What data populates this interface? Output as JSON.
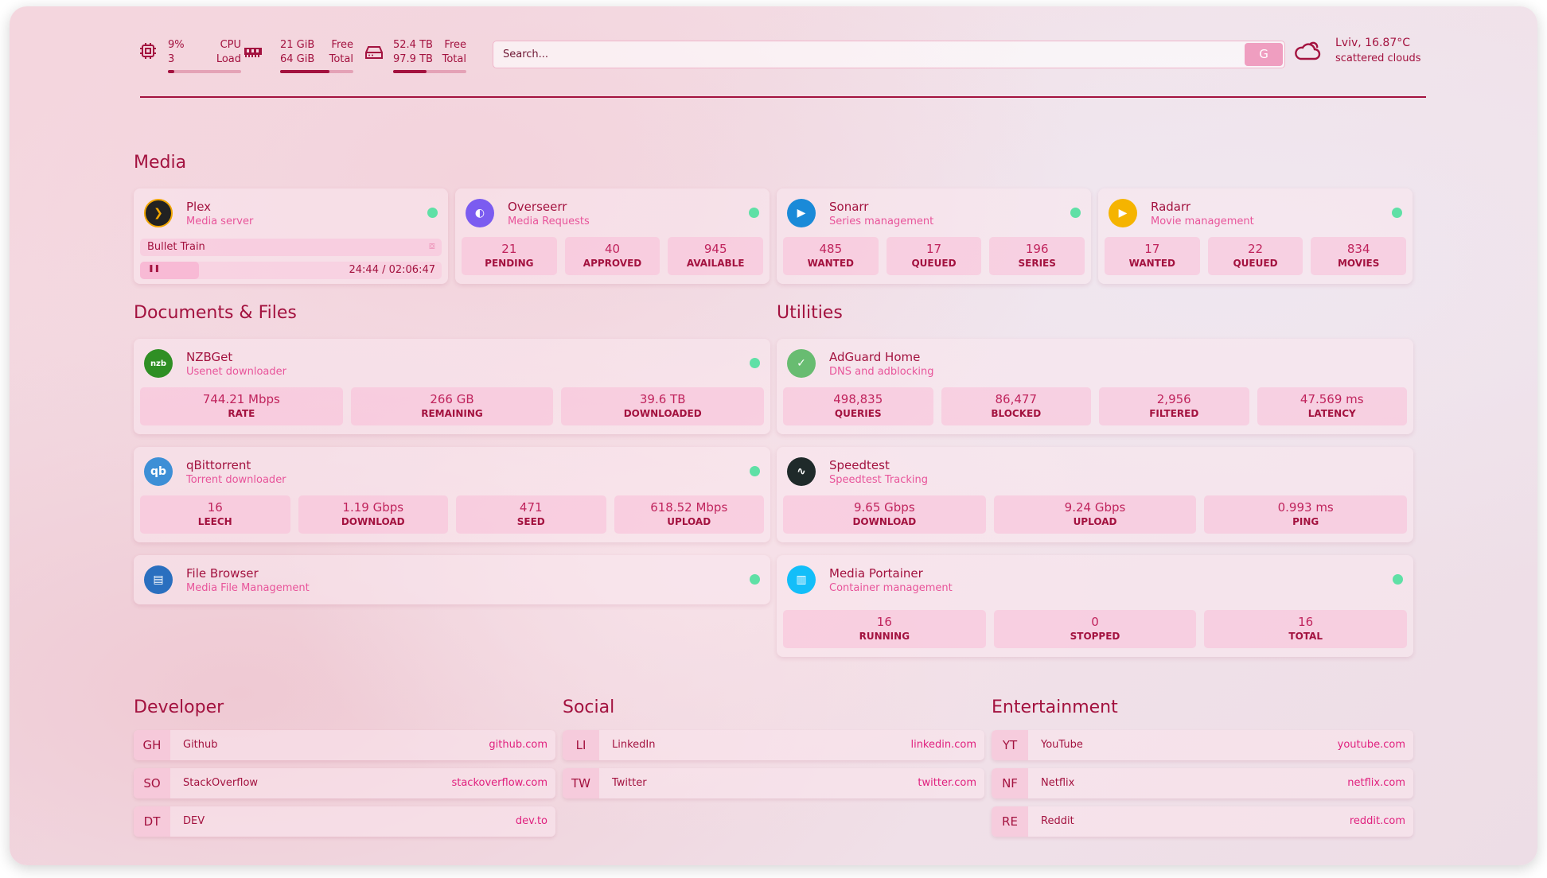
{
  "header": {
    "cpu": {
      "value": "9%",
      "sub": "3",
      "label1": "CPU",
      "label2": "Load",
      "percent": 9
    },
    "memory": {
      "value": "21 GiB",
      "sub": "64 GiB",
      "label1": "Free",
      "label2": "Total",
      "percent": 67
    },
    "disk": {
      "value": "52.4 TB",
      "sub": "97.9 TB",
      "label1": "Free",
      "label2": "Total",
      "percent": 46
    },
    "search": {
      "placeholder": "Search...",
      "button": "G"
    },
    "weather": {
      "location_temp": "Lviv, 16.87°C",
      "condition": "scattered clouds"
    }
  },
  "sections": {
    "media": "Media",
    "docs": "Documents & Files",
    "utilities": "Utilities",
    "developer": "Developer",
    "social": "Social",
    "entertainment": "Entertainment"
  },
  "cards": [
    {
      "name": "Plex",
      "desc": "Media server",
      "icon": "plex-icon",
      "color": "#222222",
      "status": "online",
      "now_playing": {
        "title": "Bullet Train",
        "time": "24:44 / 02:06:47",
        "progress": 19.5
      }
    },
    {
      "name": "Overseerr",
      "desc": "Media Requests",
      "icon": "overseerr-icon",
      "color": "#7b5cf0",
      "status": "online",
      "stats": [
        {
          "v": "21",
          "l": "PENDING"
        },
        {
          "v": "40",
          "l": "APPROVED"
        },
        {
          "v": "945",
          "l": "AVAILABLE"
        }
      ]
    },
    {
      "name": "Sonarr",
      "desc": "Series management",
      "icon": "sonarr-icon",
      "color": "#1a8ad8",
      "status": "online",
      "stats": [
        {
          "v": "485",
          "l": "WANTED"
        },
        {
          "v": "17",
          "l": "QUEUED"
        },
        {
          "v": "196",
          "l": "SERIES"
        }
      ]
    },
    {
      "name": "Radarr",
      "desc": "Movie management",
      "icon": "radarr-icon",
      "color": "#f5b400",
      "status": "online",
      "stats": [
        {
          "v": "17",
          "l": "WANTED"
        },
        {
          "v": "22",
          "l": "QUEUED"
        },
        {
          "v": "834",
          "l": "MOVIES"
        }
      ]
    },
    {
      "name": "NZBGet",
      "desc": "Usenet downloader",
      "icon": "nzbget-icon",
      "color": "#2f8f24",
      "status": "online",
      "stats": [
        {
          "v": "744.21 Mbps",
          "l": "RATE"
        },
        {
          "v": "266 GB",
          "l": "REMAINING"
        },
        {
          "v": "39.6 TB",
          "l": "DOWNLOADED"
        }
      ]
    },
    {
      "name": "qBittorrent",
      "desc": "Torrent downloader",
      "icon": "qbittorrent-icon",
      "color": "#3d8fd6",
      "status": "online",
      "stats": [
        {
          "v": "16",
          "l": "LEECH"
        },
        {
          "v": "1.19 Gbps",
          "l": "DOWNLOAD"
        },
        {
          "v": "471",
          "l": "SEED"
        },
        {
          "v": "618.52 Mbps",
          "l": "UPLOAD"
        }
      ]
    },
    {
      "name": "File Browser",
      "desc": "Media File Management",
      "icon": "filebrowser-icon",
      "color": "#2a6fbf",
      "status": "online"
    },
    {
      "name": "AdGuard Home",
      "desc": "DNS and adblocking",
      "icon": "adguard-icon",
      "color": "#68bc71",
      "status": "none",
      "stats": [
        {
          "v": "498,835",
          "l": "QUERIES"
        },
        {
          "v": "86,477",
          "l": "BLOCKED"
        },
        {
          "v": "2,956",
          "l": "FILTERED"
        },
        {
          "v": "47.569 ms",
          "l": "LATENCY"
        }
      ]
    },
    {
      "name": "Speedtest",
      "desc": "Speedtest Tracking",
      "icon": "speedtest-icon",
      "color": "#1f2a2a",
      "status": "none",
      "stats": [
        {
          "v": "9.65 Gbps",
          "l": "DOWNLOAD"
        },
        {
          "v": "9.24 Gbps",
          "l": "UPLOAD"
        },
        {
          "v": "0.993 ms",
          "l": "PING"
        }
      ]
    },
    {
      "name": "Media Portainer",
      "desc": "Container management",
      "icon": "portainer-icon",
      "color": "#13bef9",
      "status": "online",
      "stats": [
        {
          "v": "16",
          "l": "RUNNING"
        },
        {
          "v": "0",
          "l": "STOPPED"
        },
        {
          "v": "16",
          "l": "TOTAL"
        }
      ]
    }
  ],
  "bookmarks": [
    [
      {
        "abbr": "GH",
        "name": "Github",
        "url": "github.com"
      },
      {
        "abbr": "SO",
        "name": "StackOverflow",
        "url": "stackoverflow.com"
      },
      {
        "abbr": "DT",
        "name": "DEV",
        "url": "dev.to"
      }
    ],
    [
      {
        "abbr": "LI",
        "name": "LinkedIn",
        "url": "linkedin.com"
      },
      {
        "abbr": "TW",
        "name": "Twitter",
        "url": "twitter.com"
      }
    ],
    [
      {
        "abbr": "YT",
        "name": "YouTube",
        "url": "youtube.com"
      },
      {
        "abbr": "NF",
        "name": "Netflix",
        "url": "netflix.com"
      },
      {
        "abbr": "RE",
        "name": "Reddit",
        "url": "reddit.com"
      }
    ]
  ]
}
